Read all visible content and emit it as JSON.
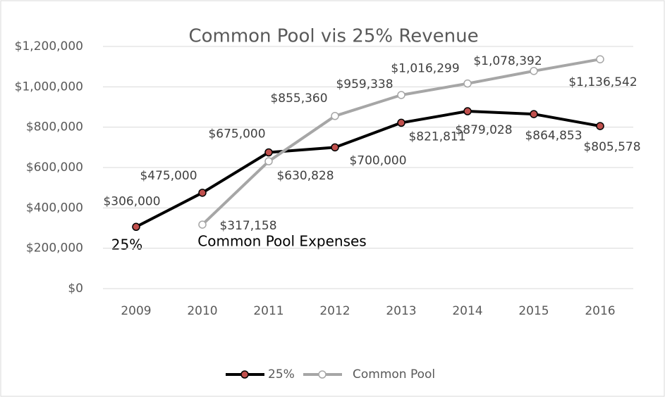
{
  "chart_data": {
    "type": "line",
    "title": "Common Pool vis 25% Revenue",
    "categories": [
      "2009",
      "2010",
      "2011",
      "2012",
      "2013",
      "2014",
      "2015",
      "2016"
    ],
    "series": [
      {
        "name": "25%",
        "color": "#000000",
        "marker_color": "#c0504d",
        "values": [
          306000,
          475000,
          675000,
          700000,
          821811,
          879028,
          864853,
          805578
        ],
        "value_labels": [
          "$306,000",
          "$475,000",
          "$675,000",
          "$700,000",
          "$821,811",
          "$879,028",
          "$864,853",
          "$805,578"
        ]
      },
      {
        "name": "Common Pool",
        "color": "#a6a6a6",
        "marker_color": "#ffffff",
        "values": [
          null,
          317158,
          630828,
          855360,
          959338,
          1016299,
          1078392,
          1136542
        ],
        "value_labels": [
          null,
          "$317,158",
          "$630,828",
          "$855,360",
          "$959,338",
          "$1,016,299",
          "$1,078,392",
          "$1,136,542"
        ]
      }
    ],
    "ylim": [
      0,
      1200000
    ],
    "yticks": [
      {
        "value": 0,
        "label": "$0"
      },
      {
        "value": 200000,
        "label": "$200,000"
      },
      {
        "value": 400000,
        "label": "$400,000"
      },
      {
        "value": 600000,
        "label": "$600,000"
      },
      {
        "value": 800000,
        "label": "$800,000"
      },
      {
        "value": 1000000,
        "label": "$1,000,000"
      },
      {
        "value": 1200000,
        "label": "$1,200,000"
      }
    ],
    "grid": true,
    "legend": "bottom",
    "annotations": [
      "25%",
      "Common Pool Expenses"
    ]
  }
}
